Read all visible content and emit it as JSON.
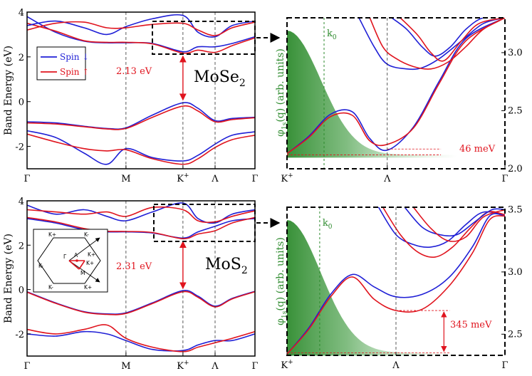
{
  "colors": {
    "spin_down": "#1f1fd6",
    "spin_up": "#e0141e",
    "green": "#2e8b2e",
    "annotation_red": "#e0141e"
  },
  "chart_data": [
    {
      "id": "mose2-bands",
      "type": "line",
      "material": "MoSe2",
      "ylabel": "Band Energy (eV)",
      "ylim": [
        -3,
        4
      ],
      "yticks": [
        "-2",
        "0",
        "2",
        "4"
      ],
      "ytick_values": [
        -2,
        0,
        2,
        4
      ],
      "xlim": [
        0,
        4
      ],
      "kpath": [
        "Γ",
        "M",
        "K+",
        "Λ",
        "Γ"
      ],
      "kpath_labels": [
        {
          "base": "Γ",
          "sup": ""
        },
        {
          "base": "M",
          "sup": ""
        },
        {
          "base": "K",
          "sup": "+"
        },
        {
          "base": "Λ",
          "sup": ""
        },
        {
          "base": "Γ",
          "sup": ""
        }
      ],
      "kpath_positions": [
        0,
        1.736,
        2.736,
        3.3,
        4
      ],
      "legend": {
        "position": "upper-left",
        "entries": [
          {
            "name": "Spin ↓",
            "color": "#1f1fd6"
          },
          {
            "name": "Spin ↑",
            "color": "#e0141e"
          }
        ]
      },
      "gap_label": "2.13 eV",
      "gap": {
        "x": 2.736,
        "from": -0.02,
        "to": 2.13
      },
      "series": [
        {
          "name": "Spin ↓",
          "color": "#1f1fd6",
          "x": [
            0,
            0.5,
            1.0,
            1.4,
            1.736,
            2.2,
            2.736,
            3.0,
            3.3,
            3.6,
            4.0
          ],
          "y": [
            -0.9,
            -0.95,
            -1.1,
            -1.2,
            -1.17,
            -0.6,
            -0.05,
            -0.3,
            -0.85,
            -0.75,
            -0.7
          ]
        },
        {
          "name": "Spin ↑",
          "color": "#e0141e",
          "x": [
            0,
            0.5,
            1.0,
            1.4,
            1.736,
            2.2,
            2.736,
            3.0,
            3.3,
            3.6,
            4.0
          ],
          "y": [
            -0.95,
            -1.0,
            -1.12,
            -1.22,
            -1.2,
            -0.7,
            -0.2,
            -0.42,
            -0.9,
            -0.8,
            -0.72
          ]
        },
        {
          "name": "Spin ↓",
          "color": "#1f1fd6",
          "x": [
            0,
            0.5,
            1.0,
            1.4,
            1.736,
            2.2,
            2.736,
            3.0,
            3.3,
            3.6,
            4.0
          ],
          "y": [
            -1.3,
            -1.6,
            -2.3,
            -2.8,
            -2.1,
            -2.5,
            -2.65,
            -2.4,
            -1.9,
            -1.5,
            -1.35
          ]
        },
        {
          "name": "Spin ↑",
          "color": "#e0141e",
          "x": [
            0,
            0.5,
            1.0,
            1.4,
            1.736,
            2.2,
            2.736,
            3.0,
            3.3,
            3.6,
            4.0
          ],
          "y": [
            -1.45,
            -1.8,
            -2.1,
            -2.2,
            -2.15,
            -2.55,
            -2.8,
            -2.55,
            -2.05,
            -1.7,
            -1.5
          ]
        },
        {
          "name": "Spin ↓",
          "color": "#1f1fd6",
          "x": [
            0,
            0.5,
            1.0,
            1.4,
            1.736,
            2.2,
            2.736,
            3.0,
            3.3,
            3.6,
            4.0
          ],
          "y": [
            3.8,
            3.1,
            2.7,
            2.63,
            2.63,
            2.6,
            2.23,
            2.45,
            2.45,
            2.6,
            2.9
          ]
        },
        {
          "name": "Spin ↑",
          "color": "#e0141e",
          "x": [
            0,
            0.5,
            1.0,
            1.4,
            1.736,
            2.2,
            2.736,
            3.0,
            3.3,
            3.6,
            4.0
          ],
          "y": [
            3.5,
            3.15,
            2.72,
            2.65,
            2.65,
            2.58,
            2.17,
            2.3,
            2.2,
            2.5,
            2.85
          ]
        },
        {
          "name": "Spin ↓",
          "color": "#1f1fd6",
          "x": [
            0,
            0.5,
            1.0,
            1.4,
            1.736,
            2.2,
            2.736,
            3.0,
            3.3,
            3.6,
            4.0
          ],
          "y": [
            3.4,
            3.6,
            3.3,
            3.0,
            3.35,
            3.7,
            3.85,
            3.1,
            2.9,
            3.4,
            3.6
          ]
        },
        {
          "name": "Spin ↑",
          "color": "#e0141e",
          "x": [
            0,
            0.5,
            1.0,
            1.4,
            1.736,
            2.2,
            2.736,
            3.0,
            3.3,
            3.6,
            4.0
          ],
          "y": [
            3.2,
            3.5,
            3.55,
            3.3,
            3.3,
            3.45,
            3.5,
            3.2,
            2.95,
            3.3,
            3.55
          ]
        }
      ]
    },
    {
      "id": "mose2-zoom",
      "type": "line",
      "ylabel": "φ1s(q) (arb. units)",
      "ylabel_parts": {
        "phi": "φ",
        "sub": "1s",
        "rest": "(q) (arb. units)"
      },
      "ylim": [
        2.0,
        3.3
      ],
      "yticks": [
        "2.0",
        "2.5",
        "3.0"
      ],
      "ytick_values": [
        2.0,
        2.5,
        3.0
      ],
      "xlim": [
        0,
        1
      ],
      "kpath": [
        "K+",
        "Λ",
        "Γ"
      ],
      "kpath_labels": [
        {
          "base": "K",
          "sup": "+"
        },
        {
          "base": "Λ",
          "sup": ""
        },
        {
          "base": "Γ",
          "sup": ""
        }
      ],
      "kpath_positions": [
        0,
        0.46,
        1
      ],
      "k0_label": {
        "base": "k",
        "sub": "0"
      },
      "k0_position": 0.17,
      "splitting_label": "46 meV",
      "splitting": {
        "x": 0.46,
        "from": 2.12,
        "to": 2.17
      },
      "series": [
        {
          "name": "Spin ↓",
          "color": "#1f1fd6",
          "x": [
            0,
            0.1,
            0.2,
            0.3,
            0.38,
            0.46,
            0.58,
            0.7,
            0.82,
            1.0
          ],
          "y": [
            2.13,
            2.28,
            2.47,
            2.49,
            2.26,
            2.16,
            2.36,
            2.76,
            3.12,
            3.3
          ]
        },
        {
          "name": "Spin ↑",
          "color": "#e0141e",
          "x": [
            0,
            0.1,
            0.2,
            0.3,
            0.38,
            0.46,
            0.58,
            0.7,
            0.82,
            1.0
          ],
          "y": [
            2.13,
            2.27,
            2.45,
            2.46,
            2.24,
            2.21,
            2.35,
            2.74,
            3.1,
            3.3
          ]
        },
        {
          "name": "Spin ↓",
          "color": "#1f1fd6",
          "x": [
            0.33,
            0.4,
            0.46,
            0.55,
            0.62,
            0.7,
            0.8,
            0.9,
            1.0
          ],
          "y": [
            3.3,
            3.05,
            2.9,
            2.86,
            2.87,
            2.95,
            3.1,
            3.25,
            3.3
          ]
        },
        {
          "name": "Spin ↑",
          "color": "#e0141e",
          "x": [
            0.38,
            0.44,
            0.5,
            0.58,
            0.66,
            0.74,
            0.82,
            0.9,
            1.0
          ],
          "y": [
            3.3,
            3.05,
            2.95,
            2.88,
            2.86,
            2.92,
            3.05,
            3.2,
            3.3
          ]
        },
        {
          "name": "Spin ↓",
          "color": "#1f1fd6",
          "x": [
            0.48,
            0.55,
            0.62,
            0.68,
            0.75,
            0.82,
            0.9,
            1.0
          ],
          "y": [
            3.3,
            3.2,
            3.05,
            2.97,
            3.05,
            3.2,
            3.3,
            3.3
          ]
        },
        {
          "name": "Spin ↑",
          "color": "#e0141e",
          "x": [
            0.52,
            0.6,
            0.66,
            0.72,
            0.8,
            0.88,
            1.0
          ],
          "y": [
            3.3,
            3.15,
            3.0,
            2.93,
            3.1,
            3.25,
            3.3
          ]
        }
      ]
    },
    {
      "id": "mos2-bands",
      "type": "line",
      "material": "MoS2",
      "ylabel": "Band Energy (eV)",
      "ylim": [
        -3,
        4
      ],
      "yticks": [
        "-2",
        "0",
        "2",
        "4"
      ],
      "ytick_values": [
        -2,
        0,
        2,
        4
      ],
      "xlim": [
        0,
        4
      ],
      "kpath": [
        "Γ",
        "M",
        "K+",
        "Λ",
        "Γ"
      ],
      "kpath_labels": [
        {
          "base": "Γ",
          "sup": ""
        },
        {
          "base": "M",
          "sup": ""
        },
        {
          "base": "K",
          "sup": "+"
        },
        {
          "base": "Λ",
          "sup": ""
        },
        {
          "base": "Γ",
          "sup": ""
        }
      ],
      "kpath_positions": [
        0,
        1.736,
        2.736,
        3.3,
        4
      ],
      "gap_label": "2.31 eV",
      "gap": {
        "x": 2.736,
        "from": -0.05,
        "to": 2.26
      },
      "inset": {
        "labels": [
          "K+",
          "K-",
          "K+",
          "K-",
          "K+",
          "K-",
          "Γ",
          "Λ",
          "K+",
          "M"
        ]
      },
      "series": [
        {
          "name": "Spin ↓",
          "color": "#1f1fd6",
          "x": [
            0,
            0.5,
            1.0,
            1.4,
            1.736,
            2.2,
            2.736,
            3.0,
            3.3,
            3.6,
            4.0
          ],
          "y": [
            -0.1,
            -0.6,
            -1.0,
            -1.1,
            -1.05,
            -0.6,
            -0.05,
            -0.3,
            -0.75,
            -0.4,
            -0.08
          ]
        },
        {
          "name": "Spin ↑",
          "color": "#e0141e",
          "x": [
            0,
            0.5,
            1.0,
            1.4,
            1.736,
            2.2,
            2.736,
            3.0,
            3.3,
            3.6,
            4.0
          ],
          "y": [
            -0.12,
            -0.62,
            -1.02,
            -1.12,
            -1.08,
            -0.63,
            -0.1,
            -0.35,
            -0.78,
            -0.42,
            -0.1
          ]
        },
        {
          "name": "Spin ↓",
          "color": "#1f1fd6",
          "x": [
            0,
            0.5,
            1.0,
            1.4,
            1.736,
            2.2,
            2.736,
            3.0,
            3.3,
            3.6,
            4.0
          ],
          "y": [
            -2.0,
            -2.1,
            -1.9,
            -2.0,
            -2.3,
            -2.7,
            -2.75,
            -2.5,
            -2.3,
            -2.3,
            -2.0
          ]
        },
        {
          "name": "Spin ↑",
          "color": "#e0141e",
          "x": [
            0,
            0.5,
            1.0,
            1.4,
            1.736,
            2.2,
            2.736,
            3.0,
            3.3,
            3.6,
            4.0
          ],
          "y": [
            -1.8,
            -2.0,
            -1.8,
            -1.6,
            -2.2,
            -2.6,
            -2.8,
            -2.6,
            -2.4,
            -2.2,
            -1.9
          ]
        },
        {
          "name": "Spin ↓",
          "color": "#1f1fd6",
          "x": [
            0,
            0.5,
            1.0,
            1.4,
            1.736,
            2.2,
            2.736,
            3.0,
            3.3,
            3.6,
            4.0
          ],
          "y": [
            3.2,
            3.0,
            2.7,
            2.6,
            2.6,
            2.55,
            2.32,
            2.6,
            2.85,
            3.1,
            3.2
          ]
        },
        {
          "name": "Spin ↑",
          "color": "#e0141e",
          "x": [
            0,
            0.5,
            1.0,
            1.4,
            1.736,
            2.2,
            2.736,
            3.0,
            3.3,
            3.6,
            4.0
          ],
          "y": [
            3.25,
            3.05,
            2.75,
            2.63,
            2.62,
            2.57,
            2.29,
            2.5,
            2.65,
            3.0,
            3.25
          ]
        },
        {
          "name": "Spin ↓",
          "color": "#1f1fd6",
          "x": [
            0,
            0.5,
            1.0,
            1.4,
            1.736,
            2.2,
            2.736,
            3.0,
            3.3,
            3.6,
            4.0
          ],
          "y": [
            3.8,
            3.4,
            3.6,
            3.3,
            3.1,
            3.5,
            3.9,
            3.2,
            3.0,
            3.4,
            3.6
          ]
        },
        {
          "name": "Spin ↑",
          "color": "#e0141e",
          "x": [
            0,
            0.5,
            1.0,
            1.4,
            1.736,
            2.2,
            2.736,
            3.0,
            3.3,
            3.6,
            4.0
          ],
          "y": [
            3.6,
            3.5,
            3.4,
            3.5,
            3.3,
            3.7,
            3.6,
            3.1,
            3.05,
            3.3,
            3.55
          ]
        }
      ]
    },
    {
      "id": "mos2-zoom",
      "type": "line",
      "ylabel": "φ1s(q) (arb. units)",
      "ylabel_parts": {
        "phi": "φ",
        "sub": "1s",
        "rest": "(q) (arb. units)"
      },
      "ylim": [
        2.33,
        3.52
      ],
      "yticks": [
        "2.5",
        "3.0",
        "3.5"
      ],
      "ytick_values": [
        2.5,
        3.0,
        3.5
      ],
      "xlim": [
        0,
        1
      ],
      "kpath": [
        "K+",
        "Λ",
        "Γ"
      ],
      "kpath_labels": [
        {
          "base": "K",
          "sup": "+"
        },
        {
          "base": "Λ",
          "sup": ""
        },
        {
          "base": "Γ",
          "sup": ""
        }
      ],
      "kpath_positions": [
        0,
        0.5,
        1
      ],
      "k0_label": {
        "base": "k",
        "sub": "0"
      },
      "k0_position": 0.15,
      "splitting_label": "345 meV",
      "splitting": {
        "x": 0.5,
        "from": 2.35,
        "to": 2.69
      },
      "series": [
        {
          "name": "Spin ↓",
          "color": "#1f1fd6",
          "x": [
            0,
            0.1,
            0.2,
            0.3,
            0.4,
            0.5,
            0.62,
            0.74,
            0.85,
            0.93,
            1.0
          ],
          "y": [
            2.34,
            2.55,
            2.82,
            2.98,
            2.88,
            2.8,
            2.82,
            2.95,
            3.2,
            3.45,
            3.45
          ]
        },
        {
          "name": "Spin ↑",
          "color": "#e0141e",
          "x": [
            0,
            0.1,
            0.2,
            0.3,
            0.4,
            0.5,
            0.62,
            0.74,
            0.85,
            0.93,
            1.0
          ],
          "y": [
            2.34,
            2.54,
            2.8,
            2.96,
            2.78,
            2.69,
            2.7,
            2.88,
            3.15,
            3.42,
            3.45
          ]
        },
        {
          "name": "Spin ↓",
          "color": "#1f1fd6",
          "x": [
            0.42,
            0.5,
            0.58,
            0.66,
            0.74,
            0.82,
            0.9,
            1.0
          ],
          "y": [
            3.52,
            3.3,
            3.22,
            3.2,
            3.25,
            3.38,
            3.48,
            3.46
          ]
        },
        {
          "name": "Spin ↑",
          "color": "#e0141e",
          "x": [
            0.44,
            0.52,
            0.6,
            0.68,
            0.76,
            0.84,
            0.92,
            1.0
          ],
          "y": [
            3.52,
            3.3,
            3.16,
            3.12,
            3.2,
            3.35,
            3.48,
            3.46
          ]
        },
        {
          "name": "Spin ↓",
          "color": "#1f1fd6",
          "x": [
            0.54,
            0.62,
            0.7,
            0.78,
            0.86,
            0.94,
            1.0
          ],
          "y": [
            3.52,
            3.36,
            3.3,
            3.3,
            3.4,
            3.5,
            3.5
          ]
        },
        {
          "name": "Spin ↑",
          "color": "#e0141e",
          "x": [
            0.58,
            0.66,
            0.74,
            0.82,
            0.9,
            1.0
          ],
          "y": [
            3.52,
            3.35,
            3.25,
            3.28,
            3.44,
            3.5
          ]
        }
      ]
    }
  ]
}
